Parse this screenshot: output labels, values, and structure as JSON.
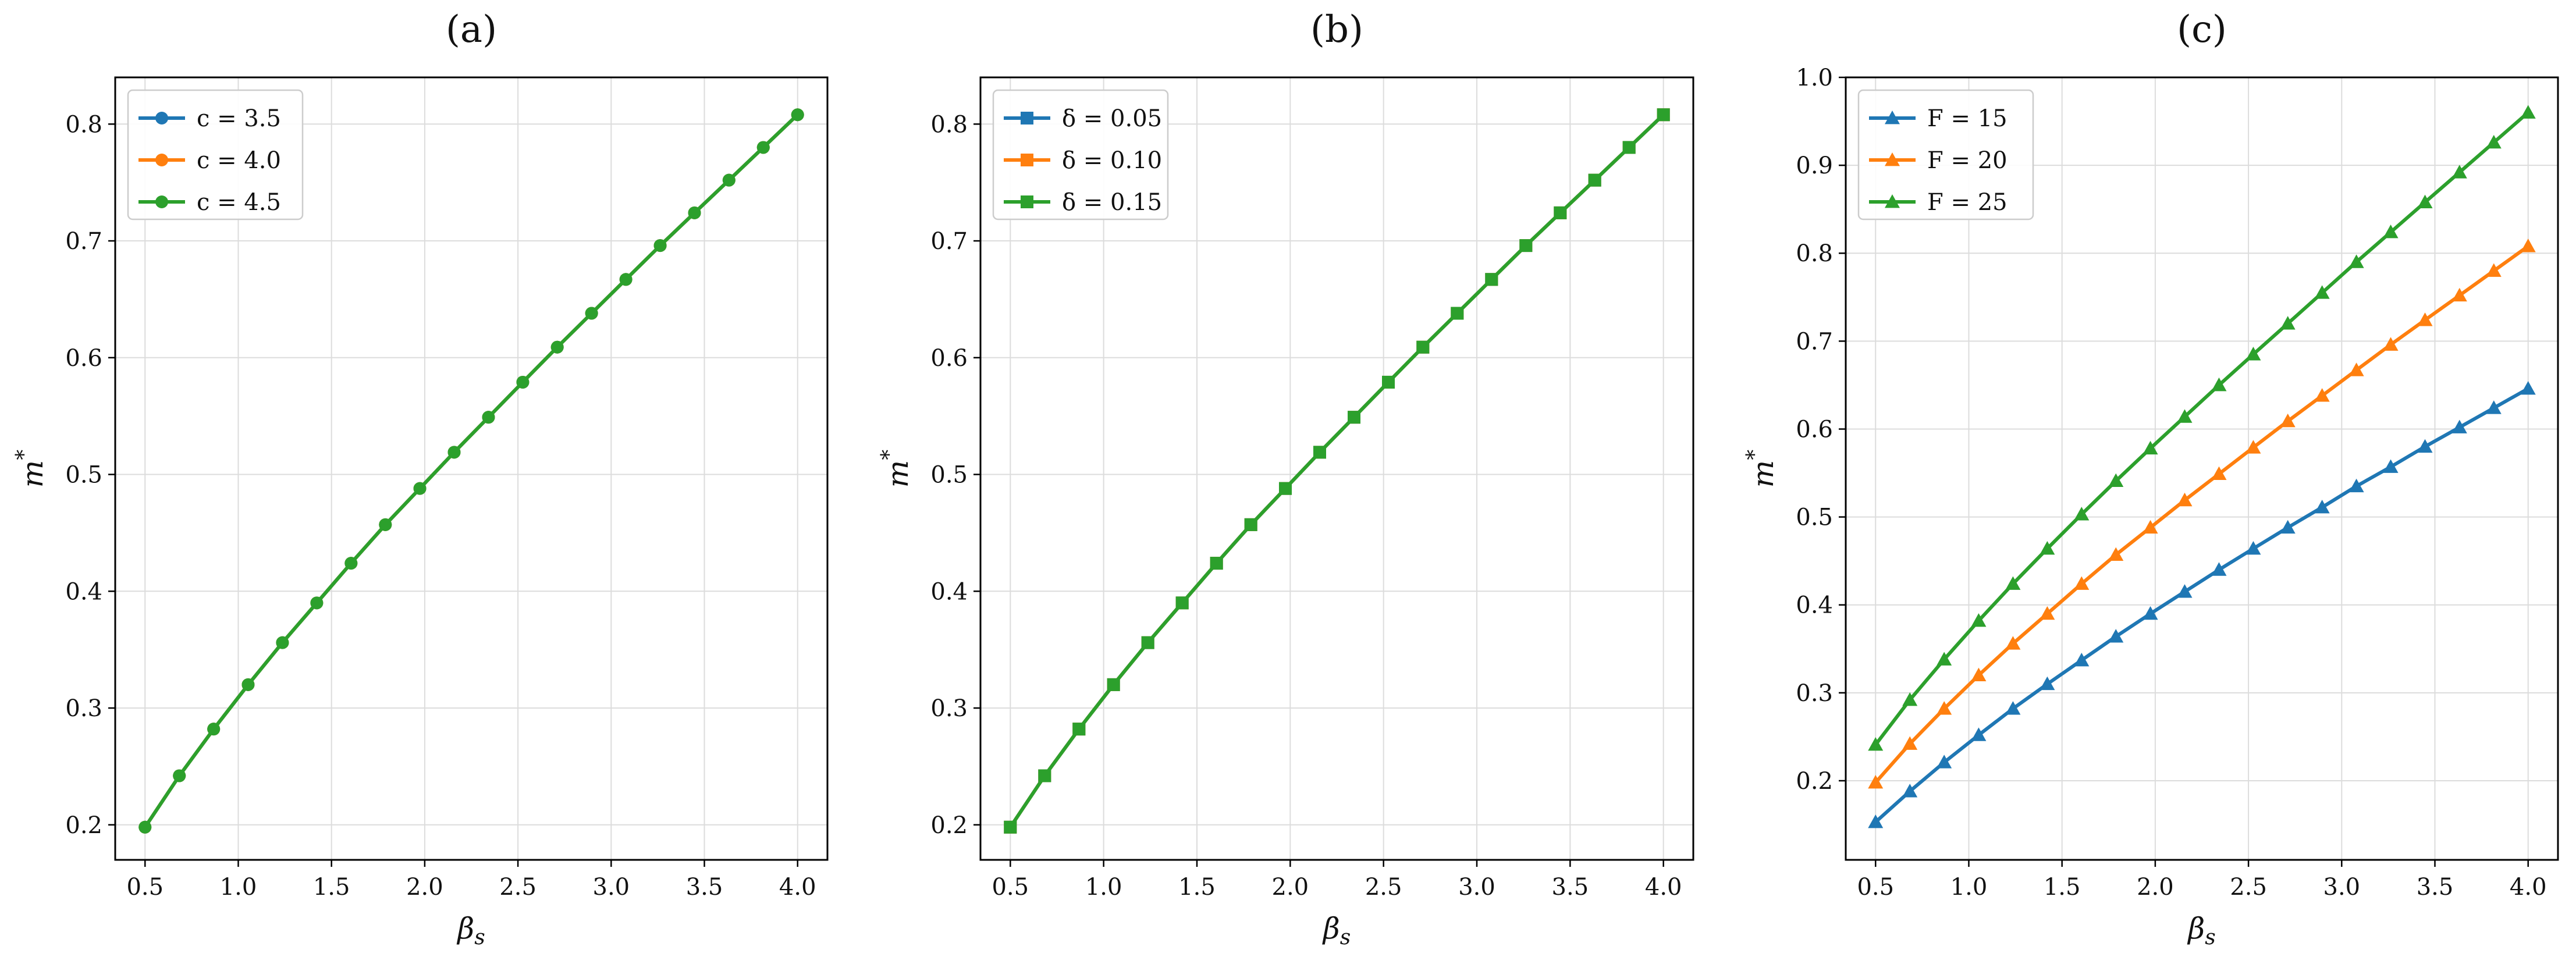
{
  "figure": {
    "background": "#ffffff"
  },
  "chart_data": [
    {
      "id": "a",
      "type": "line",
      "title": "(a)",
      "xlabel": "β_s",
      "ylabel": "m*",
      "xlim": [
        0.34,
        4.16
      ],
      "ylim": [
        0.17,
        0.84
      ],
      "xticks": [
        0.5,
        1.0,
        1.5,
        2.0,
        2.5,
        3.0,
        3.5,
        4.0
      ],
      "yticks": [
        0.2,
        0.3,
        0.4,
        0.5,
        0.6,
        0.7,
        0.8
      ],
      "tick_decimals": 1,
      "grid": true,
      "legend": "top-left",
      "marker": "circle",
      "x": [
        0.5,
        0.684,
        0.868,
        1.053,
        1.237,
        1.421,
        1.605,
        1.789,
        1.974,
        2.158,
        2.342,
        2.526,
        2.711,
        2.895,
        3.079,
        3.263,
        3.447,
        3.632,
        3.816,
        4.0
      ],
      "series": [
        {
          "name": "c = 3.5",
          "color": "#1f77b4",
          "values": [
            0.198,
            0.242,
            0.282,
            0.32,
            0.356,
            0.39,
            0.424,
            0.457,
            0.488,
            0.519,
            0.549,
            0.579,
            0.609,
            0.638,
            0.667,
            0.696,
            0.724,
            0.752,
            0.78,
            0.808
          ]
        },
        {
          "name": "c = 4.0",
          "color": "#ff7f0e",
          "values": [
            0.198,
            0.242,
            0.282,
            0.32,
            0.356,
            0.39,
            0.424,
            0.457,
            0.488,
            0.519,
            0.549,
            0.579,
            0.609,
            0.638,
            0.667,
            0.696,
            0.724,
            0.752,
            0.78,
            0.808
          ]
        },
        {
          "name": "c = 4.5",
          "color": "#2ca02c",
          "values": [
            0.198,
            0.242,
            0.282,
            0.32,
            0.356,
            0.39,
            0.424,
            0.457,
            0.488,
            0.519,
            0.549,
            0.579,
            0.609,
            0.638,
            0.667,
            0.696,
            0.724,
            0.752,
            0.78,
            0.808
          ]
        }
      ]
    },
    {
      "id": "b",
      "type": "line",
      "title": "(b)",
      "xlabel": "β_s",
      "ylabel": "m*",
      "xlim": [
        0.34,
        4.16
      ],
      "ylim": [
        0.17,
        0.84
      ],
      "xticks": [
        0.5,
        1.0,
        1.5,
        2.0,
        2.5,
        3.0,
        3.5,
        4.0
      ],
      "yticks": [
        0.2,
        0.3,
        0.4,
        0.5,
        0.6,
        0.7,
        0.8
      ],
      "tick_decimals": 1,
      "grid": true,
      "legend": "top-left",
      "marker": "square",
      "x": [
        0.5,
        0.684,
        0.868,
        1.053,
        1.237,
        1.421,
        1.605,
        1.789,
        1.974,
        2.158,
        2.342,
        2.526,
        2.711,
        2.895,
        3.079,
        3.263,
        3.447,
        3.632,
        3.816,
        4.0
      ],
      "series": [
        {
          "name": "δ = 0.05",
          "color": "#1f77b4",
          "values": [
            0.198,
            0.242,
            0.282,
            0.32,
            0.356,
            0.39,
            0.424,
            0.457,
            0.488,
            0.519,
            0.549,
            0.579,
            0.609,
            0.638,
            0.667,
            0.696,
            0.724,
            0.752,
            0.78,
            0.808
          ]
        },
        {
          "name": "δ = 0.10",
          "color": "#ff7f0e",
          "values": [
            0.198,
            0.242,
            0.282,
            0.32,
            0.356,
            0.39,
            0.424,
            0.457,
            0.488,
            0.519,
            0.549,
            0.579,
            0.609,
            0.638,
            0.667,
            0.696,
            0.724,
            0.752,
            0.78,
            0.808
          ]
        },
        {
          "name": "δ = 0.15",
          "color": "#2ca02c",
          "values": [
            0.198,
            0.242,
            0.282,
            0.32,
            0.356,
            0.39,
            0.424,
            0.457,
            0.488,
            0.519,
            0.549,
            0.579,
            0.609,
            0.638,
            0.667,
            0.696,
            0.724,
            0.752,
            0.78,
            0.808
          ]
        }
      ]
    },
    {
      "id": "c",
      "type": "line",
      "title": "(c)",
      "xlabel": "β_s",
      "ylabel": "m*",
      "xlim": [
        0.34,
        4.16
      ],
      "ylim": [
        0.11,
        1.0
      ],
      "xticks": [
        0.5,
        1.0,
        1.5,
        2.0,
        2.5,
        3.0,
        3.5,
        4.0
      ],
      "yticks": [
        0.2,
        0.3,
        0.4,
        0.5,
        0.6,
        0.7,
        0.8,
        0.9,
        1.0
      ],
      "tick_decimals": 1,
      "grid": true,
      "legend": "top-left",
      "marker": "triangle",
      "x": [
        0.5,
        0.684,
        0.868,
        1.053,
        1.237,
        1.421,
        1.605,
        1.789,
        1.974,
        2.158,
        2.342,
        2.526,
        2.711,
        2.895,
        3.079,
        3.263,
        3.447,
        3.632,
        3.816,
        4.0
      ],
      "series": [
        {
          "name": "F = 15",
          "color": "#1f77b4",
          "values": [
            0.153,
            0.188,
            0.221,
            0.252,
            0.282,
            0.31,
            0.337,
            0.364,
            0.39,
            0.415,
            0.44,
            0.464,
            0.488,
            0.511,
            0.535,
            0.557,
            0.58,
            0.602,
            0.624,
            0.646
          ]
        },
        {
          "name": "F = 20",
          "color": "#ff7f0e",
          "values": [
            0.198,
            0.242,
            0.282,
            0.32,
            0.356,
            0.39,
            0.424,
            0.457,
            0.488,
            0.519,
            0.549,
            0.579,
            0.609,
            0.638,
            0.667,
            0.696,
            0.724,
            0.752,
            0.78,
            0.808
          ]
        },
        {
          "name": "F = 25",
          "color": "#2ca02c",
          "values": [
            0.241,
            0.292,
            0.338,
            0.382,
            0.424,
            0.464,
            0.503,
            0.541,
            0.578,
            0.614,
            0.65,
            0.685,
            0.72,
            0.755,
            0.79,
            0.824,
            0.858,
            0.892,
            0.926,
            0.96
          ]
        }
      ]
    }
  ]
}
